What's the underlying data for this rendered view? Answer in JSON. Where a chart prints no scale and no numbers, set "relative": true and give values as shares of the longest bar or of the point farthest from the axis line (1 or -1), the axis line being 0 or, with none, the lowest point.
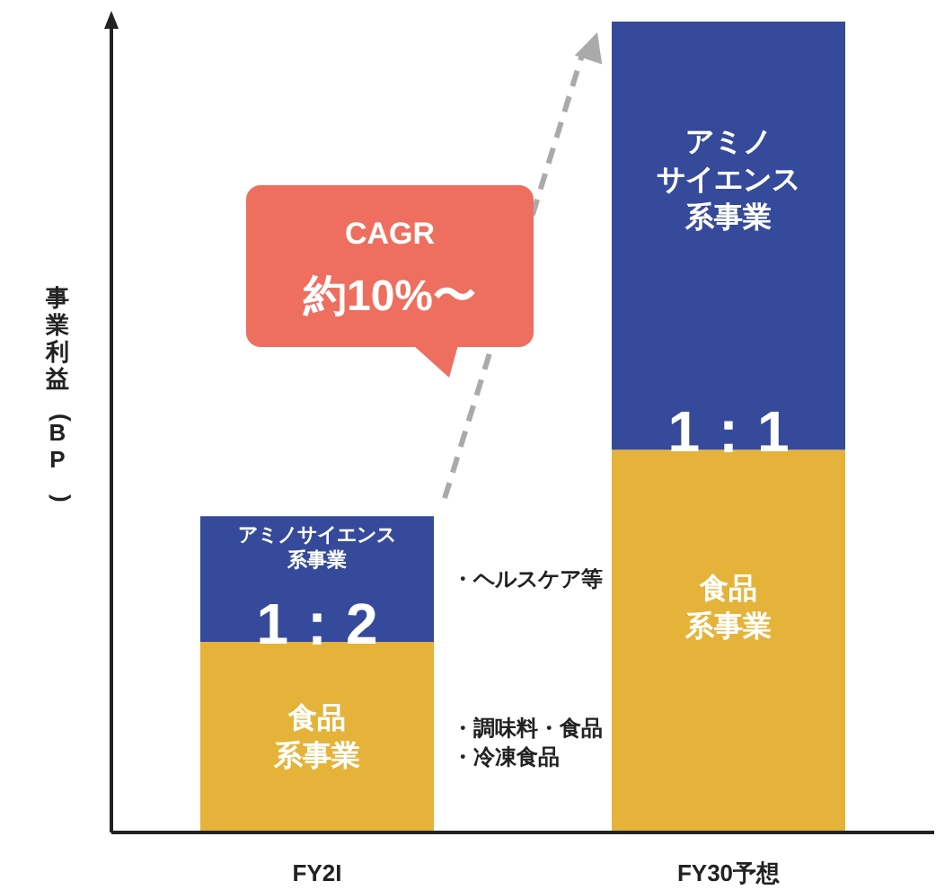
{
  "chart_data": {
    "type": "bar",
    "stacked": true,
    "relative": true,
    "ylabel": "事業利益(BP)",
    "categories": [
      "FY2I",
      "FY30予想"
    ],
    "series": [
      {
        "color": "#e5b33a",
        "values": [
          0.235,
          0.472
        ]
      },
      {
        "color": "#364a9b",
        "values": [
          0.155,
          0.528
        ]
      }
    ],
    "annotations": [
      "CAGR 約10%〜",
      "・ヘルスケア等",
      "・調味料・食品・冷凍食品",
      "アミノサイエンス系事業",
      "1：2",
      "食品系事業",
      "アミノサイエンス系事業",
      "1：1",
      "食品系事業"
    ]
  }
}
